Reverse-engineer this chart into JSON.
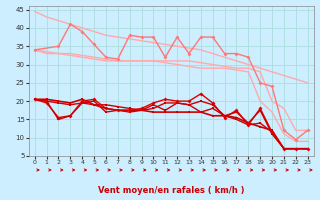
{
  "title": "",
  "xlabel": "Vent moyen/en rafales ( km/h )",
  "ylabel": "",
  "xlim": [
    -0.5,
    23.5
  ],
  "ylim": [
    5,
    46
  ],
  "yticks": [
    5,
    10,
    15,
    20,
    25,
    30,
    35,
    40,
    45
  ],
  "xticks": [
    0,
    1,
    2,
    3,
    4,
    5,
    6,
    7,
    8,
    9,
    10,
    11,
    12,
    13,
    14,
    15,
    16,
    17,
    18,
    19,
    20,
    21,
    22,
    23
  ],
  "background_color": "#cceeff",
  "grid_color": "#aadddd",
  "lines": [
    {
      "x": [
        0,
        1,
        2,
        3,
        4,
        5,
        6,
        7,
        8,
        9,
        10,
        11,
        12,
        13,
        14,
        15,
        16,
        17,
        18,
        19,
        20,
        21,
        22,
        23
      ],
      "y": [
        44.5,
        43,
        42,
        41,
        40,
        39,
        38,
        37.5,
        37,
        36.5,
        36,
        35.5,
        35,
        34.5,
        34,
        33,
        32,
        31,
        30,
        29,
        28,
        27,
        26,
        25
      ],
      "color": "#ffaaaa",
      "lw": 1.0,
      "marker": null,
      "ms": 0
    },
    {
      "x": [
        0,
        1,
        2,
        3,
        4,
        5,
        6,
        7,
        8,
        9,
        10,
        11,
        12,
        13,
        14,
        15,
        16,
        17,
        18,
        19,
        20,
        21,
        22,
        23
      ],
      "y": [
        34,
        33.5,
        33,
        33,
        32.5,
        32,
        31.5,
        31,
        31,
        31,
        31,
        31,
        31,
        31,
        30.5,
        30,
        29.5,
        29,
        29,
        28,
        20,
        18,
        12,
        12
      ],
      "color": "#ffaaaa",
      "lw": 1.0,
      "marker": null,
      "ms": 0
    },
    {
      "x": [
        0,
        1,
        2,
        3,
        4,
        5,
        6,
        7,
        8,
        9,
        10,
        11,
        12,
        13,
        14,
        15,
        16,
        17,
        18,
        19,
        20,
        21,
        22,
        23
      ],
      "y": [
        34,
        33,
        33,
        32.5,
        32,
        31.5,
        31,
        31,
        31,
        31,
        31,
        30.5,
        30,
        29.5,
        29,
        29,
        29,
        28.5,
        28,
        20,
        17,
        11,
        9,
        9
      ],
      "color": "#ffaaaa",
      "lw": 1.0,
      "marker": null,
      "ms": 0
    },
    {
      "x": [
        0,
        2,
        3,
        4,
        5,
        6,
        7,
        8,
        9,
        10,
        11,
        12,
        13,
        14,
        15,
        16,
        17,
        18,
        19,
        20,
        21,
        22,
        23
      ],
      "y": [
        34,
        35,
        41,
        39,
        35.5,
        32,
        31.5,
        38,
        37.5,
        37.5,
        32,
        37.5,
        33,
        37.5,
        37.5,
        33,
        33,
        32,
        25,
        24,
        12,
        9.5,
        12
      ],
      "color": "#ff7777",
      "lw": 1.0,
      "marker": "D",
      "ms": 2
    },
    {
      "x": [
        0,
        1,
        2,
        3,
        4,
        5,
        6,
        7,
        8,
        9,
        10,
        11,
        12,
        13,
        14,
        15,
        16,
        17,
        18,
        19,
        20,
        21,
        22,
        23
      ],
      "y": [
        20.5,
        20.5,
        20,
        19.5,
        20.5,
        19,
        18,
        17.5,
        17.5,
        17.5,
        17,
        17,
        17,
        17,
        17,
        16,
        16,
        15.5,
        14,
        13,
        12,
        7,
        7,
        7
      ],
      "color": "#cc0000",
      "lw": 1.2,
      "marker": "s",
      "ms": 2
    },
    {
      "x": [
        0,
        1,
        2,
        3,
        4,
        5,
        6,
        7,
        8,
        9,
        10,
        11,
        12,
        13,
        14,
        15,
        16,
        17,
        18,
        19,
        20,
        21,
        22,
        23
      ],
      "y": [
        20.5,
        20,
        19.5,
        19,
        19.5,
        19,
        19,
        18.5,
        18,
        17.5,
        19,
        17.5,
        19.5,
        19,
        17,
        18,
        16,
        15,
        13.5,
        14,
        11.5,
        7,
        7,
        7
      ],
      "color": "#cc0000",
      "lw": 1.0,
      "marker": "s",
      "ms": 2
    },
    {
      "x": [
        0,
        1,
        2,
        3,
        4,
        5,
        6,
        7,
        8,
        9,
        10,
        11,
        12,
        13,
        14,
        15,
        16,
        17,
        18,
        19,
        20,
        21,
        22,
        23
      ],
      "y": [
        20.5,
        19.5,
        15.5,
        16,
        20,
        20.5,
        18,
        17.5,
        17.5,
        18,
        19.5,
        20.5,
        20,
        20,
        22,
        19.5,
        15.5,
        17.5,
        13.5,
        18,
        11.5,
        7,
        7,
        7
      ],
      "color": "#dd0000",
      "lw": 1.0,
      "marker": "D",
      "ms": 2
    },
    {
      "x": [
        0,
        1,
        2,
        3,
        4,
        5,
        6,
        7,
        8,
        9,
        10,
        11,
        12,
        13,
        14,
        15,
        16,
        17,
        18,
        19,
        20,
        21,
        22,
        23
      ],
      "y": [
        20.5,
        20,
        15,
        16,
        19.5,
        20,
        17,
        17.5,
        17,
        17.5,
        18,
        19.5,
        19.5,
        19,
        20,
        19,
        16,
        17,
        14,
        17.5,
        11,
        7,
        7,
        7
      ],
      "color": "#cc0000",
      "lw": 1.0,
      "marker": "s",
      "ms": 2
    }
  ]
}
